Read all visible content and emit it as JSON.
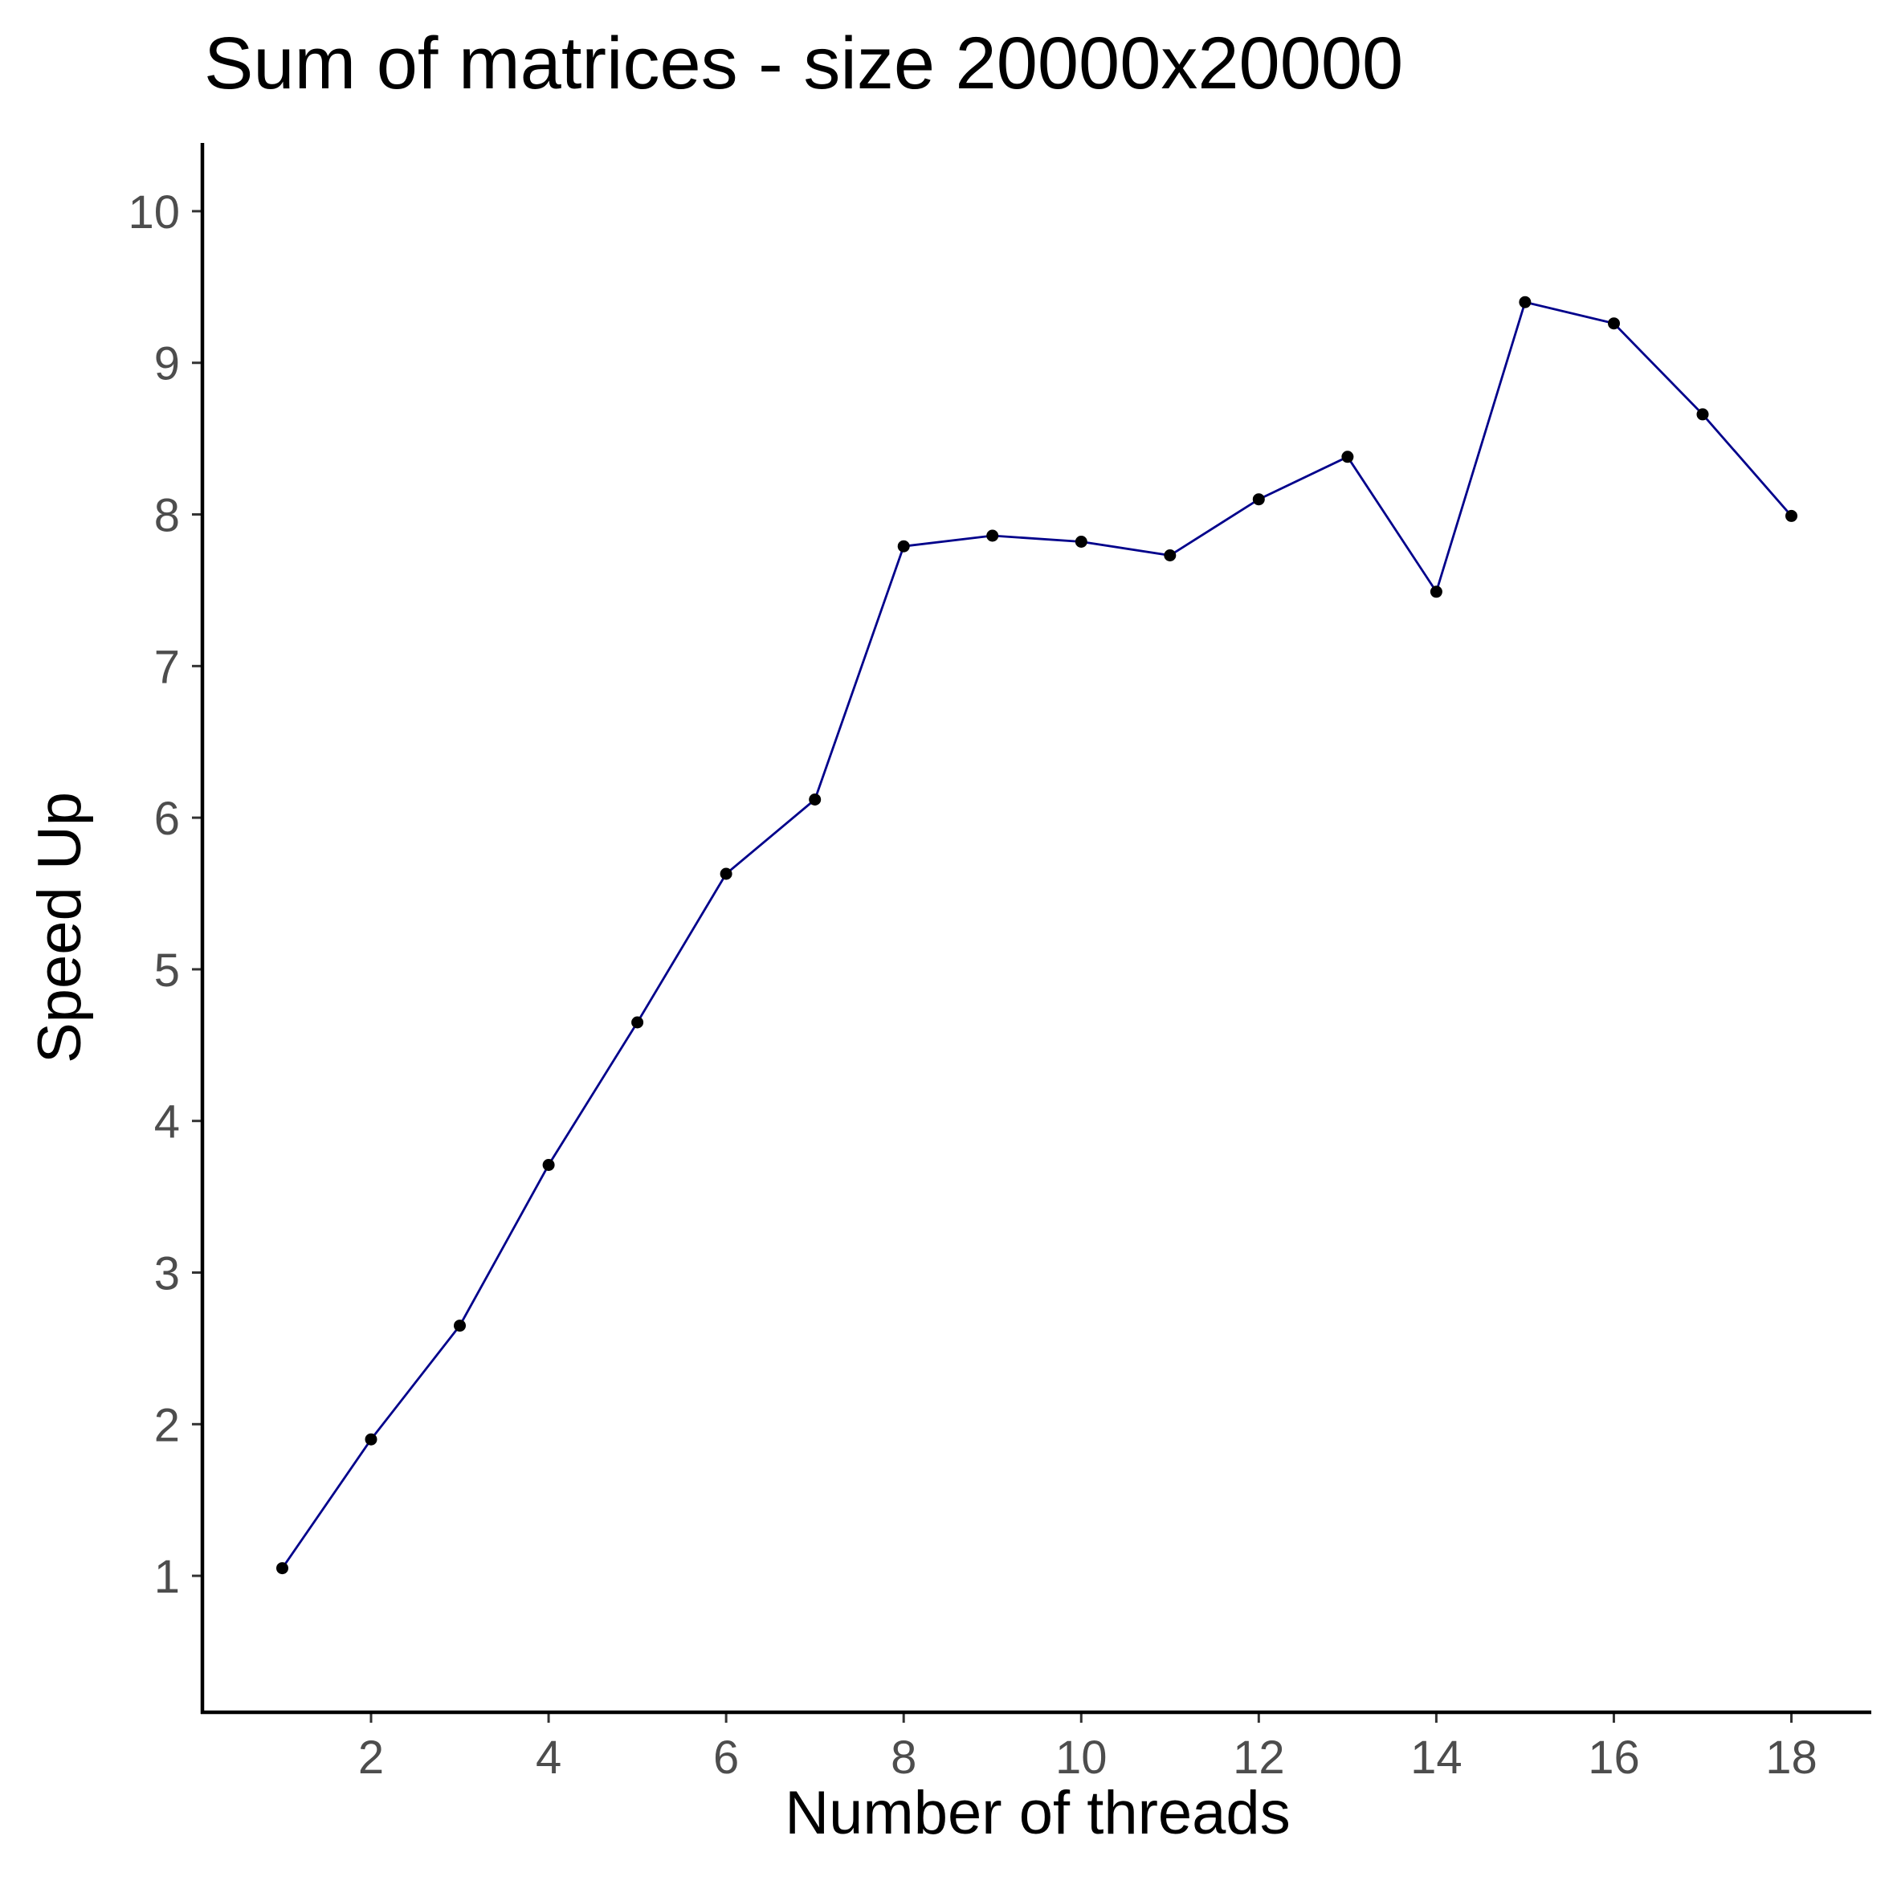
{
  "chart_data": {
    "type": "line",
    "title": "Sum of matrices - size 20000x20000",
    "xlabel": "Number of threads",
    "ylabel": "Speed Up",
    "x": [
      1,
      2,
      3,
      4,
      5,
      6,
      7,
      8,
      9,
      10,
      11,
      12,
      13,
      14,
      15,
      16,
      17,
      18
    ],
    "series": [
      {
        "values": [
          1.05,
          1.9,
          2.65,
          3.71,
          4.65,
          5.63,
          6.12,
          7.79,
          7.86,
          7.82,
          7.73,
          8.1,
          8.38,
          7.49,
          9.4,
          9.26,
          8.66,
          7.99
        ]
      }
    ],
    "xlim": [
      0.1,
      18.9
    ],
    "ylim": [
      0.1,
      10.45
    ],
    "xticks": [
      2,
      4,
      6,
      8,
      10,
      12,
      14,
      16,
      18
    ],
    "yticks": [
      1,
      2,
      3,
      4,
      5,
      6,
      7,
      8,
      9,
      10
    ],
    "grid": false,
    "legend": "none",
    "colors": {
      "line": "#00008B",
      "points": "#000000"
    }
  }
}
